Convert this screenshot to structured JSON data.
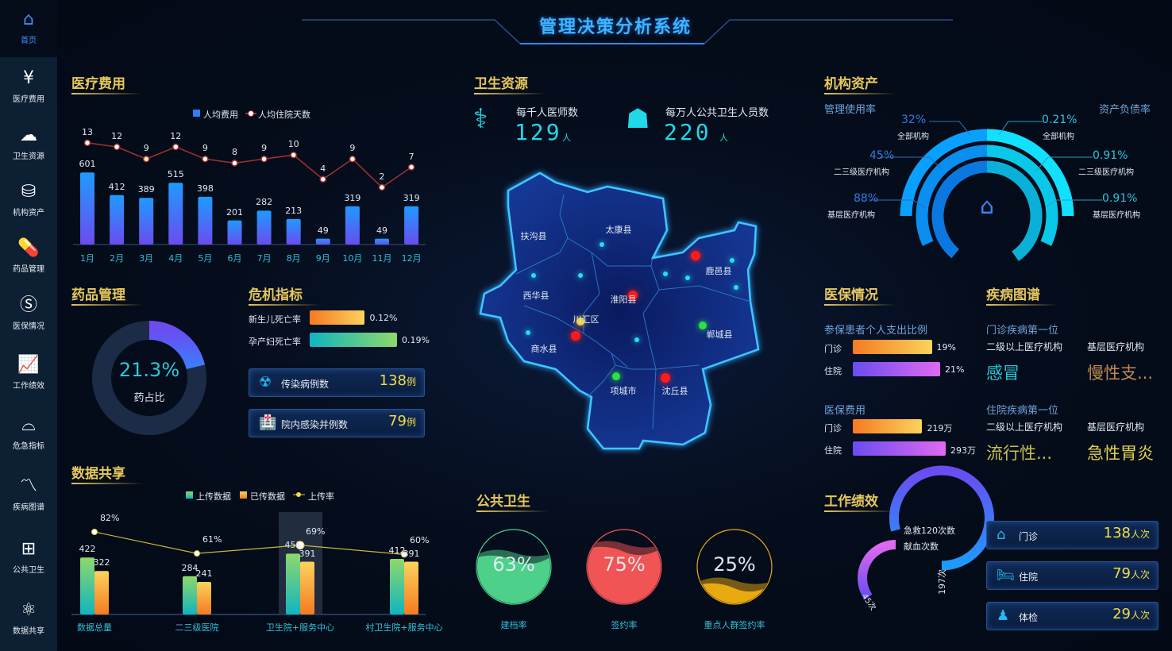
{
  "header": {
    "title": "管理决策分析系统"
  },
  "sidebar": {
    "items": [
      {
        "label": "首页",
        "icon": "home-icon"
      },
      {
        "label": "医疗费用",
        "icon": "yuan-house-icon"
      },
      {
        "label": "卫生资源",
        "icon": "cloud-icon"
      },
      {
        "label": "机构资产",
        "icon": "coins-icon"
      },
      {
        "label": "药品管理",
        "icon": "pill-icon"
      },
      {
        "label": "医保情况",
        "icon": "si-icon"
      },
      {
        "label": "工作绩效",
        "icon": "trend-icon"
      },
      {
        "label": "危急指标",
        "icon": "alarm-icon"
      },
      {
        "label": "疾病图谱",
        "icon": "chart-line-icon"
      },
      {
        "label": "公共卫生",
        "icon": "medkit-icon"
      },
      {
        "label": "数据共享",
        "icon": "atom-icon"
      }
    ]
  },
  "medical_cost": {
    "title": "医疗费用",
    "chart_data": {
      "type": "bar",
      "categories": [
        "1月",
        "2月",
        "3月",
        "4月",
        "5月",
        "6月",
        "7月",
        "8月",
        "9月",
        "10月",
        "11月",
        "12月"
      ],
      "series": [
        {
          "name": "人均费用",
          "type": "bar",
          "values": [
            601,
            412,
            389,
            515,
            398,
            201,
            282,
            213,
            49,
            319,
            49,
            319
          ]
        },
        {
          "name": "人均住院天数",
          "type": "line",
          "values": [
            13,
            12,
            9,
            12,
            9,
            8,
            9,
            10,
            4,
            9,
            2,
            7
          ]
        }
      ],
      "legend": "top",
      "colors": {
        "bar": "#1e9bff",
        "bar_bottom": "#6a4cf0",
        "line": "#a3312c"
      }
    }
  },
  "health_resources": {
    "title": "卫生资源",
    "doctors": {
      "label": "每千人医师数",
      "value": "129",
      "unit": "人"
    },
    "staff": {
      "label": "每万人公共卫生人员数",
      "value": "220",
      "unit": "人"
    },
    "map": {
      "regions": [
        "扶沟县",
        "太康县",
        "西华县",
        "淮阳县",
        "川汇区",
        "鹿邑县",
        "商水县",
        "郸城县",
        "项城市",
        "沈丘县"
      ]
    }
  },
  "assets": {
    "title": "机构资产",
    "left_title": "管理使用率",
    "right_title": "资产负债率",
    "left": [
      {
        "value": "32%",
        "label": "全部机构"
      },
      {
        "value": "45%",
        "label": "二三级医疗机构"
      },
      {
        "value": "88%",
        "label": "基层医疗机构"
      }
    ],
    "right": [
      {
        "value": "0.21%",
        "label": "全部机构"
      },
      {
        "value": "0.91%",
        "label": "二三级医疗机构"
      },
      {
        "value": "0.91%",
        "label": "基层医疗机构"
      }
    ],
    "center_icon": "yuan-house-icon"
  },
  "drugs": {
    "title": "药品管理",
    "value": "21.3%",
    "percent": 21.3,
    "label": "药占比"
  },
  "crisis": {
    "title": "危机指标",
    "bars": [
      {
        "label": "新生儿死亡率",
        "value": "0.12%",
        "num": 0.12
      },
      {
        "label": "孕产妇死亡率",
        "value": "0.19%",
        "num": 0.19
      }
    ],
    "cards": [
      {
        "label": "传染病例数",
        "value": "138",
        "unit": "例",
        "icon": "virus-icon"
      },
      {
        "label": "院内感染并例数",
        "value": "79",
        "unit": "例",
        "icon": "hospital-icon"
      }
    ]
  },
  "insurance": {
    "title": "医保情况",
    "ratio_title": "参保患者个人支出比例",
    "ratio": [
      {
        "label": "门诊",
        "value": "19%",
        "num": 19
      },
      {
        "label": "住院",
        "value": "21%",
        "num": 21
      }
    ],
    "cost_title": "医保费用",
    "cost": [
      {
        "label": "门诊",
        "value": "219万",
        "num": 219
      },
      {
        "label": "住院",
        "value": "293万",
        "num": 293
      }
    ]
  },
  "disease": {
    "title": "疾病图谱",
    "outpatient_title": "门诊疾病第一位",
    "inpatient_title": "住院疾病第一位",
    "col1": "二级以上医疗机构",
    "col2": "基层医疗机构",
    "outpatient": [
      "感冒",
      "慢性支..."
    ],
    "inpatient": [
      "流行性...",
      "急性胃炎"
    ]
  },
  "data_sharing": {
    "title": "数据共享",
    "chart_data": {
      "type": "bar",
      "categories": [
        "数据总量",
        "二三级医院",
        "卫生院+服务中心",
        "村卫生院+服务中心"
      ],
      "series": [
        {
          "name": "上传数据",
          "type": "bar",
          "values": [
            422,
            284,
            451,
            412
          ]
        },
        {
          "name": "已传数据",
          "type": "bar",
          "values": [
            322,
            241,
            391,
            391
          ]
        },
        {
          "name": "上传率",
          "type": "line",
          "values": [
            82,
            61,
            69,
            60
          ],
          "labels": [
            "82%",
            "61%",
            "69%",
            "60%"
          ]
        }
      ],
      "legend": "top",
      "highlighted": "卫生院+服务中心"
    }
  },
  "public_health": {
    "title": "公共卫生",
    "items": [
      {
        "value": "63%",
        "num": 63,
        "label": "建档率",
        "color": "#4dd08a"
      },
      {
        "value": "75%",
        "num": 75,
        "label": "签约率",
        "color": "#f05454"
      },
      {
        "value": "25%",
        "num": 25,
        "label": "重点人群签约率",
        "color": "#e8aa10"
      }
    ]
  },
  "performance": {
    "title": "工作绩效",
    "rings": [
      {
        "label": "急救120次数",
        "value": "197次",
        "num": 197
      },
      {
        "label": "献血次数",
        "value": "45次",
        "num": 45
      }
    ],
    "cards": [
      {
        "label": "门诊",
        "value": "138",
        "unit": "人次",
        "icon": "clinic-icon"
      },
      {
        "label": "住院",
        "value": "79",
        "unit": "人次",
        "icon": "bed-icon"
      },
      {
        "label": "体检",
        "value": "29",
        "unit": "人次",
        "icon": "person-icon"
      }
    ]
  }
}
